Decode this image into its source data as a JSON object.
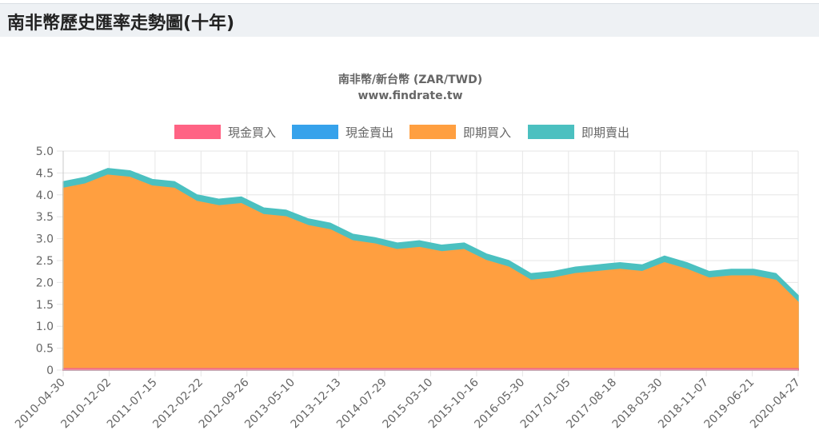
{
  "page": {
    "title": "南非幣歷史匯率走勢圖(十年)"
  },
  "chart_data": {
    "type": "area",
    "title": "南非幣/新台幣 (ZAR/TWD)",
    "subtitle": "www.findrate.tw",
    "xlabel": "",
    "ylabel": "",
    "ylim": [
      0,
      5.0
    ],
    "yticks": [
      "0",
      "0.5",
      "1.0",
      "1.5",
      "2.0",
      "2.5",
      "3.0",
      "3.5",
      "4.0",
      "4.5",
      "5.0"
    ],
    "x_ticks": [
      "2010-04-30",
      "2010-12-02",
      "2011-07-15",
      "2012-02-22",
      "2012-09-26",
      "2013-05-10",
      "2013-12-13",
      "2014-07-29",
      "2015-03-10",
      "2015-10-16",
      "2016-05-30",
      "2017-01-05",
      "2017-08-18",
      "2018-03-30",
      "2018-11-07",
      "2019-06-21",
      "2020-04-27"
    ],
    "grid": true,
    "legend_position": "top",
    "series": [
      {
        "name": "現金買入",
        "color": "#ff6384",
        "values": [
          0.03,
          0.03,
          0.03,
          0.03,
          0.03,
          0.03,
          0.03,
          0.03,
          0.03,
          0.03,
          0.03,
          0.03,
          0.03,
          0.03,
          0.03,
          0.03,
          0.03,
          0.03,
          0.03,
          0.03,
          0.03,
          0.03,
          0.03,
          0.03,
          0.03,
          0.03,
          0.03,
          0.03,
          0.03,
          0.03,
          0.03,
          0.03,
          0.03,
          0.03
        ]
      },
      {
        "name": "現金賣出",
        "color": "#36a2eb",
        "values": [
          0.03,
          0.03,
          0.03,
          0.03,
          0.03,
          0.03,
          0.03,
          0.03,
          0.03,
          0.03,
          0.03,
          0.03,
          0.03,
          0.03,
          0.03,
          0.03,
          0.03,
          0.03,
          0.03,
          0.03,
          0.03,
          0.03,
          0.03,
          0.03,
          0.03,
          0.03,
          0.03,
          0.03,
          0.03,
          0.03,
          0.03,
          0.03,
          0.03,
          0.03
        ]
      },
      {
        "name": "即期買入",
        "color": "#ff9f40",
        "values": [
          4.15,
          4.25,
          4.45,
          4.4,
          4.2,
          4.15,
          3.85,
          3.75,
          3.8,
          3.55,
          3.5,
          3.3,
          3.2,
          2.95,
          2.88,
          2.75,
          2.8,
          2.7,
          2.75,
          2.5,
          2.35,
          2.05,
          2.1,
          2.2,
          2.25,
          2.3,
          2.25,
          2.45,
          2.3,
          2.1,
          2.15,
          2.15,
          2.05,
          1.55
        ]
      },
      {
        "name": "即期賣出",
        "color": "#4bc0c0",
        "values": [
          4.3,
          4.4,
          4.6,
          4.55,
          4.35,
          4.3,
          4.0,
          3.9,
          3.95,
          3.7,
          3.65,
          3.45,
          3.35,
          3.1,
          3.02,
          2.9,
          2.95,
          2.85,
          2.9,
          2.65,
          2.5,
          2.2,
          2.25,
          2.35,
          2.4,
          2.45,
          2.4,
          2.6,
          2.45,
          2.25,
          2.3,
          2.3,
          2.2,
          1.7
        ]
      }
    ]
  }
}
